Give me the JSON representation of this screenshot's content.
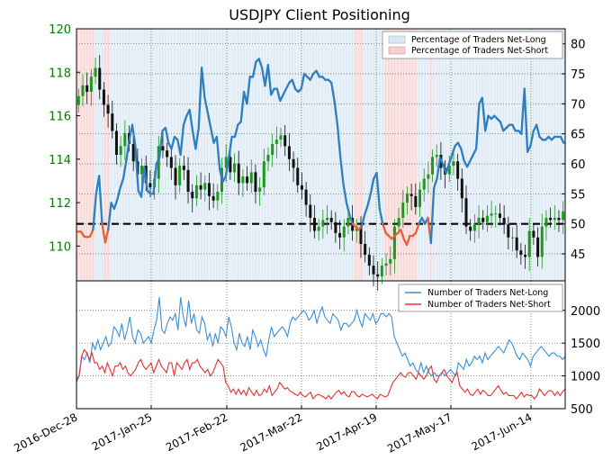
{
  "chart_data": [
    {
      "type": "candlestick",
      "panel": "price",
      "title": "USDJPY Client Positioning",
      "left_axis": {
        "ticks": [
          110,
          112,
          114,
          116,
          118,
          120
        ],
        "range": [
          108.4,
          120
        ],
        "color": "#008000"
      },
      "right_axis": {
        "ticks": [
          45,
          50,
          55,
          60,
          65,
          70,
          75,
          80
        ],
        "range": [
          40.5,
          82.5
        ]
      },
      "threshold_line": 50,
      "grid": true,
      "legend": {
        "placement": "top-right",
        "entries": [
          {
            "label": "Percentage of Traders Net-Long",
            "color": "#dce9f5"
          },
          {
            "label": "Percentage of Traders Net-Short",
            "color": "#f8cfcf"
          }
        ]
      },
      "series": [
        {
          "name": "USDJPY",
          "axis": "left",
          "ohlc_close": [
            116.9,
            117.4,
            117.1,
            117.8,
            118.2,
            117.2,
            116.5,
            116.1,
            115.3,
            114.2,
            114.6,
            115.2,
            114.7,
            113.9,
            113.3,
            113.7,
            112.9,
            112.7,
            113.1,
            114.6,
            114.4,
            114.1,
            113.6,
            112.8,
            113.7,
            113.5,
            112.5,
            112.2,
            112.8,
            112.6,
            112.9,
            112.3,
            112.1,
            112.5,
            113.6,
            114.1,
            113.4,
            113.8,
            112.9,
            113.2,
            112.9,
            113.4,
            112.5,
            112.7,
            113.9,
            114.2,
            114.7,
            114.9,
            115.1,
            114.6,
            114.0,
            113.6,
            112.8,
            112.6,
            111.9,
            111.3,
            110.7,
            110.9,
            111.2,
            111.3,
            111.1,
            110.6,
            110.4,
            110.9,
            111.3,
            110.7,
            110.9,
            110.1,
            109.6,
            109.1,
            108.7,
            108.6,
            109.1,
            109.2,
            109.4,
            110.9,
            111.3,
            112.0,
            112.4,
            112.3,
            111.8,
            112.6,
            113.1,
            113.3,
            114.1,
            114.2,
            113.6,
            113.3,
            113.7,
            113.9,
            113.1,
            112.2,
            110.9,
            110.7,
            111.0,
            111.3,
            111.1,
            111.4,
            111.5,
            111.5,
            111.3,
            111.0,
            110.4,
            110.4,
            109.8,
            109.6,
            109.5,
            110.7,
            110.4,
            109.5,
            110.9,
            111.3,
            111.2,
            111.3,
            111.2,
            111.6
          ]
        },
        {
          "name": "Percentage of Traders Net-Long",
          "axis": "right",
          "values": [
            48.7,
            48.7,
            47.9,
            47.8,
            47.9,
            49.0,
            55.0,
            58.0,
            50.0,
            46.9,
            49.0,
            53.5,
            52.5,
            54.0,
            56.0,
            57.5,
            60.5,
            64.0,
            66.5,
            63.0,
            55.5,
            54.5,
            59.5,
            55.5,
            55.0,
            55.0,
            60.0,
            61.0,
            65.5,
            66.0,
            63.5,
            62.5,
            64.5,
            64.0,
            61.5,
            66.5,
            68.0,
            69.0,
            65.5,
            62.5,
            66.0,
            76.0,
            71.0,
            68.5,
            66.0,
            63.5,
            64.5,
            59.0,
            57.0,
            58.0,
            61.0,
            64.5,
            64.5,
            66.5,
            67.0,
            72.0,
            70.0,
            74.5,
            74.5,
            77.0,
            77.5,
            76.0,
            73.0,
            76.5,
            71.5,
            72.5,
            72.5,
            70.5,
            71.5,
            72.5,
            73.5,
            74.0,
            72.5,
            72.0,
            72.5,
            75.0,
            74.5,
            74.0,
            75.0,
            75.5,
            74.5,
            74.5,
            74.0,
            74.0,
            73.5,
            70.5,
            66.5,
            61.0,
            56.5,
            53.5,
            51.5,
            50.0,
            49.5,
            49.0,
            49.5,
            51.5,
            53.0,
            55.0,
            57.5,
            58.5,
            52.5,
            50.0,
            48.5,
            48.0,
            47.5,
            48.0,
            48.5,
            49.0,
            47.5,
            46.5,
            48.0,
            48.0,
            48.5,
            50.0,
            51.0,
            50.0,
            51.0,
            46.8,
            56.0,
            57.5,
            61.0,
            60.0,
            58.5,
            60.0,
            61.5,
            63.0,
            63.5,
            62.5,
            60.5,
            59.5,
            60.5,
            61.5,
            62.5,
            70.0,
            71.0,
            65.5,
            68.0,
            67.5,
            68.0,
            67.5,
            67.0,
            65.5,
            66.0,
            66.5,
            66.5,
            65.5,
            65.5,
            65.0,
            72.5,
            62.0,
            63.0,
            65.5,
            66.5,
            64.5,
            64.0,
            64.0,
            64.5,
            64.0,
            64.5,
            64.5,
            64.5,
            63.5
          ]
        }
      ]
    },
    {
      "type": "line",
      "panel": "traders",
      "right_axis": {
        "ticks": [
          500,
          1000,
          1500,
          2000
        ],
        "range": [
          500,
          2450
        ]
      },
      "x_tick_labels": [
        "2016-Dec-28",
        "2017-Jan-25",
        "2017-Feb-22",
        "2017-Mar-22",
        "2017-Apr-19",
        "2017-May-17",
        "2017-Jun-14"
      ],
      "grid": true,
      "legend": {
        "placement": "top-right",
        "entries": [
          {
            "label": "Number of Traders Net-Long",
            "color": "#3a8fd6"
          },
          {
            "label": "Number of Traders Net-Short",
            "color": "#e53030"
          }
        ]
      },
      "series": [
        {
          "name": "Number of Traders Net-Long",
          "color": "#3a8fd6",
          "values": [
            900,
            1000,
            1300,
            1250,
            1350,
            1200,
            1500,
            1400,
            1550,
            1400,
            1500,
            1600,
            1450,
            1500,
            1750,
            1700,
            1600,
            1800,
            1550,
            1700,
            1900,
            1600,
            1500,
            1700,
            1650,
            1500,
            1550,
            1600,
            1500,
            1700,
            1850,
            2200,
            1700,
            1650,
            1800,
            1900,
            1850,
            1950,
            1700,
            2200,
            1900,
            1750,
            2150,
            1800,
            1950,
            1700,
            1650,
            1900,
            1800,
            1550,
            1650,
            1450,
            1650,
            1500,
            1750,
            1700,
            1600,
            1900,
            1750,
            1500,
            1400,
            1650,
            1500,
            1450,
            1600,
            1400,
            1700,
            1600,
            1450,
            1550,
            1400,
            1300,
            1550,
            1750,
            1600,
            1650,
            1700,
            1750,
            1700,
            1600,
            1800,
            1900,
            1850,
            1900,
            1950,
            2000,
            1950,
            1850,
            1900,
            2000,
            1800,
            1950,
            2050,
            1900,
            1850,
            1800,
            1950,
            1900,
            1850,
            1700,
            1800,
            1800,
            1750,
            1800,
            1850,
            2000,
            1850,
            1750,
            1950,
            1900,
            1850,
            1950,
            1800,
            1850,
            1950,
            1950,
            1900,
            1950,
            1900,
            1600,
            1500,
            1400,
            1300,
            1350,
            1250,
            1150,
            1200,
            1100,
            1050,
            1200,
            1050,
            1150,
            1050,
            1000,
            1050,
            1000,
            1000,
            1050,
            1000,
            1050,
            1100,
            1050,
            1000,
            1200,
            1150,
            1100,
            1250,
            1150,
            1200,
            1300,
            1250,
            1300,
            1200,
            1350,
            1250,
            1300,
            1350,
            1400,
            1450,
            1400,
            1350,
            1450,
            1550,
            1500,
            1400,
            1300,
            1250,
            1350,
            1300,
            1250,
            1150,
            1300,
            1350,
            1400,
            1450,
            1400,
            1350,
            1300,
            1350,
            1350,
            1300,
            1300,
            1250,
            1300
          ]
        },
        {
          "name": "Number of Traders Net-Short",
          "color": "#e53030",
          "values": [
            950,
            1000,
            1300,
            1400,
            1350,
            1250,
            1350,
            1200,
            1200,
            1100,
            1150,
            1050,
            1200,
            1100,
            1000,
            1150,
            1150,
            1200,
            1100,
            1150,
            1050,
            1000,
            1050,
            1100,
            1200,
            1250,
            1150,
            1100,
            1150,
            1200,
            1050,
            1150,
            1250,
            1150,
            1100,
            1050,
            1200,
            1200,
            1000,
            1200,
            1150,
            1100,
            1200,
            1250,
            1100,
            1200,
            1200,
            1250,
            1150,
            1100,
            1050,
            1100,
            1000,
            1050,
            1150,
            1250,
            1200,
            1150,
            900,
            850,
            750,
            800,
            720,
            800,
            720,
            780,
            700,
            820,
            760,
            700,
            780,
            700,
            720,
            800,
            750,
            850,
            700,
            750,
            800,
            900,
            850,
            800,
            820,
            770,
            750,
            720,
            700,
            750,
            700,
            680,
            720,
            750,
            650,
            700,
            720,
            700,
            680,
            650,
            700,
            650,
            700,
            750,
            780,
            720,
            760,
            700,
            680,
            760,
            760,
            700,
            680,
            720,
            700,
            680,
            700,
            720,
            680,
            650,
            720,
            700,
            680,
            700,
            800,
            900,
            950,
            1000,
            1050,
            1000,
            980,
            1050,
            1050,
            1000,
            950,
            1050,
            1000,
            950,
            1000,
            1100,
            1150,
            950,
            900,
            1000,
            1050,
            1100,
            1000,
            950,
            900,
            1000,
            1050,
            850,
            800,
            750,
            800,
            720,
            700,
            750,
            800,
            720,
            780,
            750,
            700,
            700,
            750,
            800,
            850,
            780,
            720,
            750,
            700,
            700,
            700,
            650,
            700,
            750,
            680,
            720,
            700,
            700,
            650,
            700,
            800,
            750,
            700,
            750,
            780,
            760,
            700,
            760,
            700,
            760,
            800
          ]
        }
      ]
    }
  ]
}
